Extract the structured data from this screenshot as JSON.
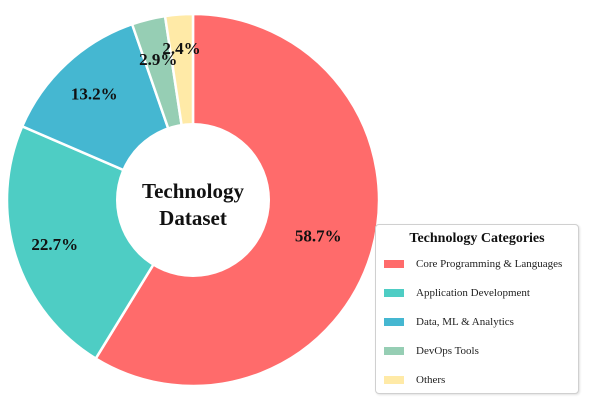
{
  "chart_data": {
    "type": "pie",
    "donut": true,
    "center_label": [
      "Technology",
      "Dataset"
    ],
    "categories": [
      "Core Programming & Languages",
      "Application Development",
      "Data, ML & Analytics",
      "DevOps Tools",
      "Others"
    ],
    "values": [
      58.7,
      22.7,
      13.2,
      2.9,
      2.4
    ],
    "value_labels": [
      "58.7%",
      "22.7%",
      "13.2%",
      "2.9%",
      "2.4%"
    ],
    "colors": [
      "#ff6b6b",
      "#4ecdc4",
      "#45b7d1",
      "#96ceb4",
      "#ffeaa7"
    ],
    "legend": {
      "title": "Technology Categories",
      "placement": "bottom-right"
    }
  }
}
